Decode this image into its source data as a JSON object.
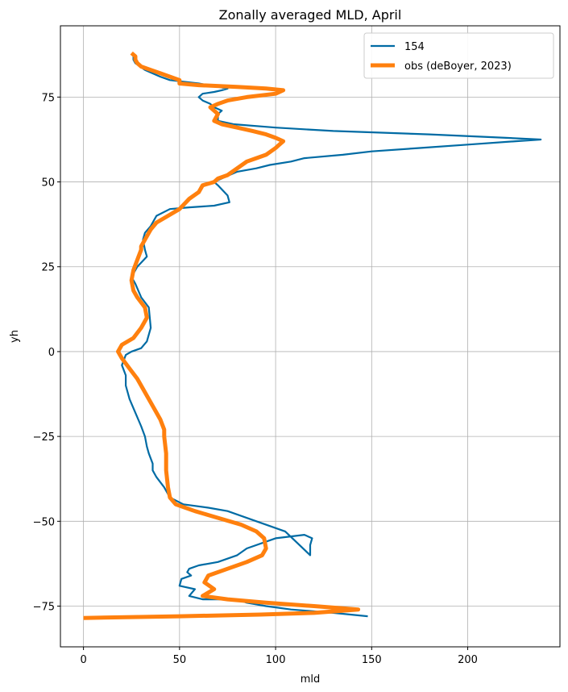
{
  "chart_data": {
    "type": "line",
    "title": "Zonally averaged MLD, April",
    "xlabel": "mld",
    "ylabel": "yh",
    "xlim": [
      -12,
      248
    ],
    "ylim": [
      -87,
      96
    ],
    "xticks": [
      0,
      50,
      100,
      150,
      200
    ],
    "yticks": [
      -75,
      -50,
      -25,
      0,
      25,
      50,
      75
    ],
    "xtick_labels": [
      "0",
      "50",
      "100",
      "150",
      "200"
    ],
    "ytick_labels": [
      "−75",
      "−50",
      "−25",
      "0",
      "25",
      "50",
      "75"
    ],
    "grid": true,
    "legend_position": "top-right",
    "series": [
      {
        "name": "154",
        "color": "#006ba4",
        "x": [
          148,
          130,
          108,
          95,
          85,
          80,
          62,
          55,
          58,
          50,
          51,
          56,
          54,
          55,
          60,
          70,
          80,
          85,
          100,
          115,
          119,
          118,
          118,
          105,
          90,
          75,
          65,
          52,
          45,
          42,
          38,
          36,
          36,
          34,
          33,
          32,
          30,
          27,
          24,
          22,
          22,
          20,
          22,
          25,
          30,
          33,
          35,
          34,
          30,
          27,
          25,
          28,
          33,
          32,
          31,
          32,
          35,
          38,
          45,
          55,
          68,
          76,
          75,
          70,
          68,
          72,
          80,
          90,
          97,
          108,
          115,
          135,
          150,
          175,
          200,
          225,
          238,
          220,
          180,
          130,
          100,
          78,
          70,
          70,
          72,
          68,
          66,
          62,
          60,
          62,
          68,
          72,
          75,
          70,
          60,
          45,
          40,
          32,
          27,
          26,
          26
        ],
        "y": [
          -78,
          -77,
          -76,
          -75,
          -74,
          -73,
          -73,
          -72,
          -70,
          -69,
          -67,
          -66,
          -65,
          -64,
          -63,
          -62,
          -60,
          -58,
          -55,
          -54,
          -55,
          -57,
          -60,
          -53,
          -50,
          -47,
          -46,
          -45,
          -43,
          -40,
          -37,
          -35,
          -33,
          -30,
          -28,
          -25,
          -22,
          -18,
          -14,
          -10,
          -7,
          -4,
          -1,
          0,
          1,
          3,
          7,
          13,
          16,
          20,
          22,
          25,
          28,
          30,
          33,
          35,
          37,
          40,
          42,
          42.5,
          43,
          44,
          46,
          49,
          50,
          51,
          53,
          54,
          55,
          56,
          57,
          58,
          59,
          60,
          61,
          62,
          62.5,
          63,
          64,
          65,
          66,
          67,
          68,
          70,
          71,
          72,
          73,
          74,
          75,
          76,
          76.5,
          77,
          77.5,
          78,
          79,
          80,
          81,
          83,
          85,
          86,
          87
        ]
      },
      {
        "name": "obs (deBoyer, 2023)",
        "color": "#ff800e",
        "x": [
          0,
          50,
          92,
          120,
          143,
          120,
          95,
          75,
          62,
          68,
          63,
          65,
          75,
          85,
          93,
          95,
          94,
          90,
          82,
          70,
          58,
          48,
          45,
          44,
          43,
          43,
          42,
          42,
          40,
          36,
          32,
          28,
          24,
          20,
          18,
          20,
          26,
          30,
          33,
          32,
          28,
          26,
          25,
          26,
          28,
          30,
          30,
          33,
          35,
          38,
          44,
          50,
          55,
          60,
          62,
          68,
          70,
          75,
          80,
          85,
          90,
          95,
          100,
          102,
          104,
          100,
          95,
          88,
          80,
          72,
          68,
          70,
          66,
          70,
          75,
          85,
          100,
          104,
          95,
          80,
          60,
          50,
          50,
          45,
          40,
          35,
          30,
          28,
          27,
          27,
          25
        ],
        "y": [
          -78.5,
          -78,
          -77.5,
          -77,
          -76,
          -75,
          -74,
          -73,
          -72,
          -70,
          -68,
          -66,
          -64,
          -62,
          -60,
          -58,
          -55,
          -53,
          -51,
          -49,
          -47,
          -45,
          -43,
          -40,
          -35,
          -30,
          -25,
          -23,
          -20,
          -16,
          -12,
          -8,
          -5,
          -2,
          0,
          2,
          4,
          7,
          10,
          13,
          16,
          18,
          21,
          24,
          27,
          30,
          31,
          34,
          36,
          38,
          40,
          42,
          45,
          47,
          49,
          50,
          51,
          52,
          54,
          56,
          57,
          58,
          60,
          61,
          62,
          63,
          64,
          65,
          66,
          67,
          68,
          70,
          72,
          73,
          74,
          75,
          76,
          77,
          77.5,
          78,
          78.5,
          79,
          80,
          81,
          82,
          83,
          84,
          85,
          86,
          87,
          88
        ]
      }
    ]
  }
}
